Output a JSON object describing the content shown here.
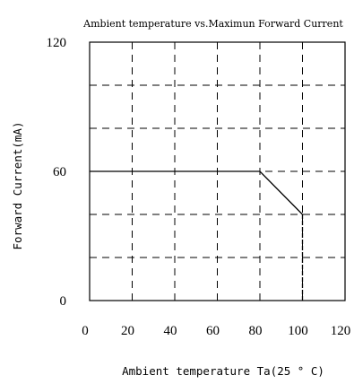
{
  "chart_data": {
    "type": "line",
    "title": "Ambient temperature vs.Maximun Forward Current",
    "xlabel": "Ambient temperature Ta(25 ° C)",
    "ylabel": "Forward Current(mA)",
    "xlim": [
      0,
      120
    ],
    "ylim": [
      0,
      120
    ],
    "x_ticks": [
      "0",
      "20",
      "40",
      "60",
      "80",
      "100",
      "120"
    ],
    "x_tick_values": [
      0,
      20,
      40,
      60,
      80,
      100,
      120
    ],
    "y_ticks": [
      "0",
      "60",
      "120"
    ],
    "y_tick_values": [
      0,
      60,
      120
    ],
    "x_grid": [
      20,
      40,
      60,
      80,
      100
    ],
    "y_grid": [
      20,
      40,
      60,
      80,
      100
    ],
    "grid": true,
    "series": [
      {
        "x": [
          0,
          80,
          100
        ],
        "y": [
          60,
          60,
          40
        ]
      }
    ],
    "drop_line": {
      "x": 100,
      "y_from": 40,
      "y_to": 0
    }
  }
}
